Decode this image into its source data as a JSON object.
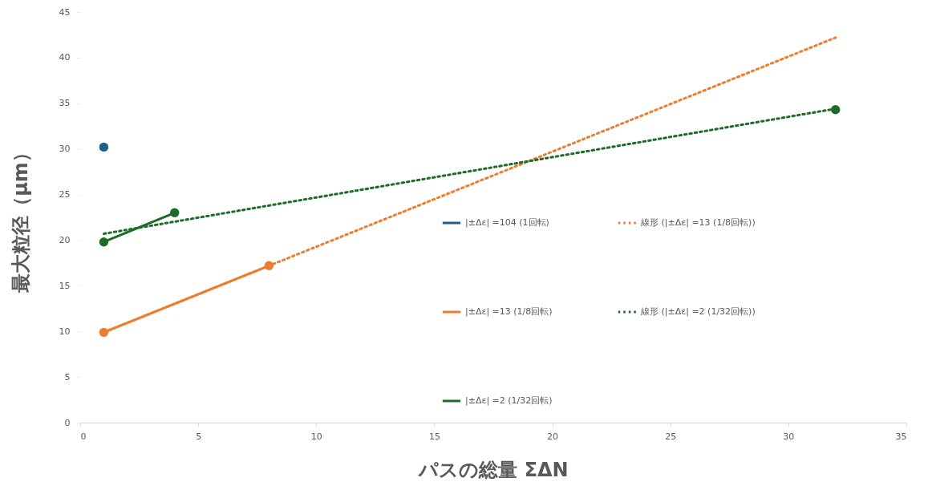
{
  "chart_data": {
    "type": "line",
    "xlabel": "パスの総量 ΣΔN",
    "ylabel": "最大粒径（μm）",
    "xlim": [
      0,
      35
    ],
    "xticks": [
      0,
      5,
      10,
      15,
      20,
      25,
      30,
      35
    ],
    "ylim": [
      0,
      45
    ],
    "yticks": [
      0,
      5,
      10,
      15,
      20,
      25,
      30,
      35,
      40,
      45
    ],
    "grid": false,
    "legend": "right",
    "series": [
      {
        "name": "|±Δε| =104 (1回転)",
        "color": "#1f5f8b",
        "x": [
          1
        ],
        "values": [
          30.2
        ],
        "marker": "circle",
        "line_style": "solid"
      },
      {
        "name": "|±Δε| =13 (1/8回転)",
        "color": "#ed7d31",
        "x": [
          1,
          8
        ],
        "values": [
          9.9,
          17.2
        ],
        "marker": "circle",
        "line_style": "solid"
      },
      {
        "name": "|±Δε| =2 (1/32回転)",
        "color": "#1e6b27",
        "x": [
          1,
          4,
          16,
          32
        ],
        "values": [
          19.8,
          23.0,
          null,
          34.3
        ],
        "marker": "circle",
        "line_style": "solid"
      },
      {
        "name": "線形 (|±Δε| =13 (1/8回転))",
        "color": "#ed7d31",
        "x": [
          1,
          32
        ],
        "values": [
          9.9,
          42.2
        ],
        "marker": "none",
        "line_style": "dotted"
      },
      {
        "name": "線形 (|±Δε| =2 (1/32回転))",
        "color": "#1e6b27",
        "x": [
          1,
          32
        ],
        "values": [
          20.7,
          34.4
        ],
        "marker": "none",
        "line_style": "dotted"
      }
    ]
  }
}
